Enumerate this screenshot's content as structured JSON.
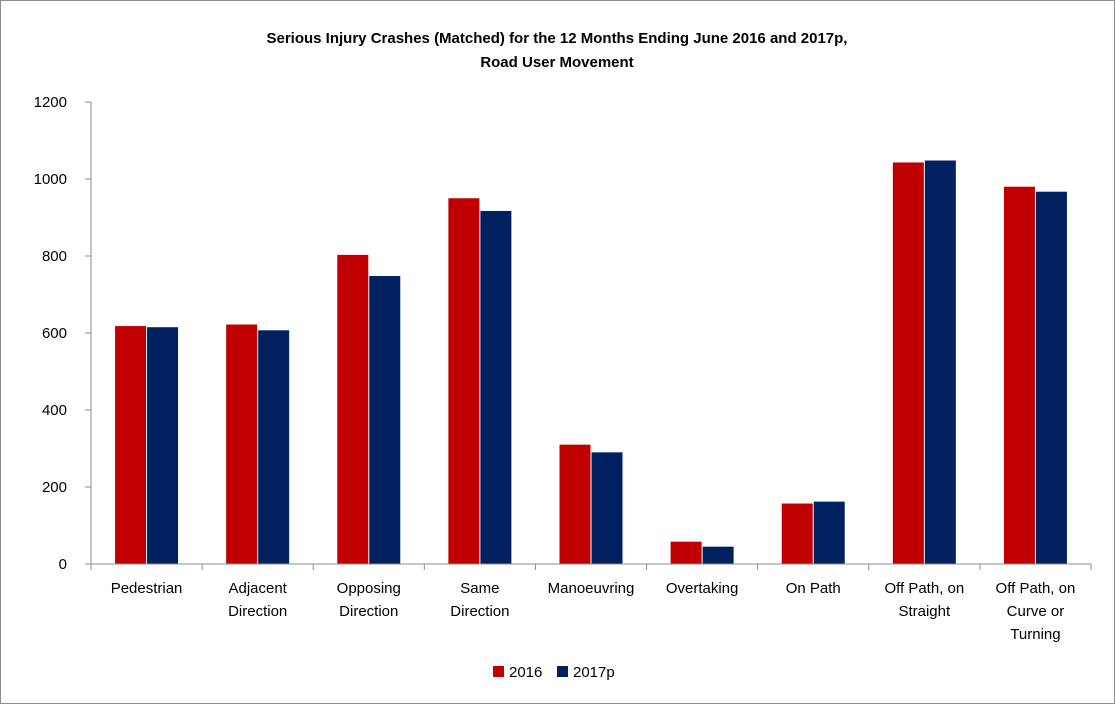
{
  "chart_data": {
    "type": "bar",
    "title": [
      "Serious Injury Crashes (Matched) for the 12 Months Ending June 2016 and 2017p,",
      "Road User Movement"
    ],
    "xlabel": "",
    "ylabel": "",
    "ylim": [
      0,
      1200
    ],
    "yticks": [
      0,
      200,
      400,
      600,
      800,
      1000,
      1200
    ],
    "grid": false,
    "legend_position": "bottom",
    "categories": [
      [
        "Pedestrian"
      ],
      [
        "Adjacent",
        "Direction"
      ],
      [
        "Opposing",
        "Direction"
      ],
      [
        "Same",
        "Direction"
      ],
      [
        "Manoeuvring"
      ],
      [
        "Overtaking"
      ],
      [
        "On Path"
      ],
      [
        "Off Path, on",
        "Straight"
      ],
      [
        "Off Path, on",
        "Curve or",
        "Turning"
      ]
    ],
    "series": [
      {
        "name": "2016",
        "color": "#c00000",
        "values": [
          618,
          622,
          803,
          950,
          310,
          58,
          157,
          1043,
          980
        ]
      },
      {
        "name": "2017p",
        "color": "#002060",
        "values": [
          615,
          607,
          748,
          917,
          290,
          45,
          162,
          1048,
          967
        ]
      }
    ]
  }
}
